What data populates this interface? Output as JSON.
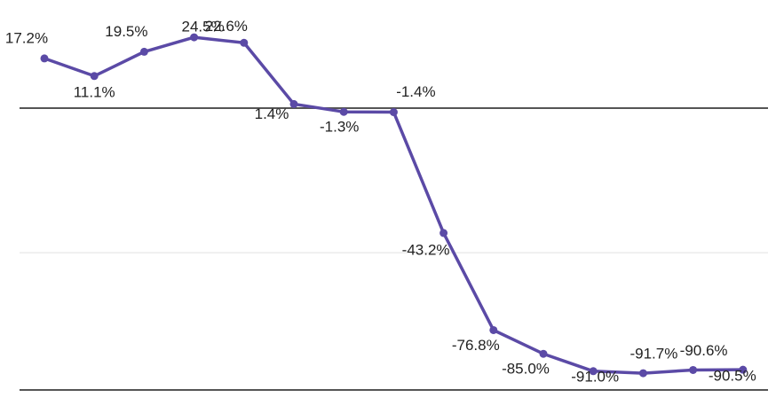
{
  "chart_data": {
    "type": "line",
    "categories": [
      null,
      null,
      null,
      null,
      null,
      null,
      null,
      null,
      null,
      null,
      null,
      null,
      null,
      null,
      null
    ],
    "series": [
      {
        "color": "#5b4aa6",
        "values": [
          17.2,
          11.1,
          19.5,
          24.5,
          22.6,
          1.4,
          -1.3,
          -1.4,
          -43.2,
          -76.8,
          -85.0,
          -91.0,
          -91.7,
          -90.6,
          -90.5
        ],
        "value_labels": [
          "17.2%",
          "11.1%",
          "19.5%",
          "24.5%",
          "22.6%",
          "1.4%",
          "-1.3%",
          "-1.4%",
          "-43.2%",
          "-76.8%",
          "-85.0%",
          "-91.0%",
          "-91.7%",
          "-90.6%",
          "-90.5%"
        ]
      }
    ],
    "ylim": [
      -97.5,
      37.4
    ],
    "yticks": [
      0,
      -50
    ],
    "grid": true
  }
}
